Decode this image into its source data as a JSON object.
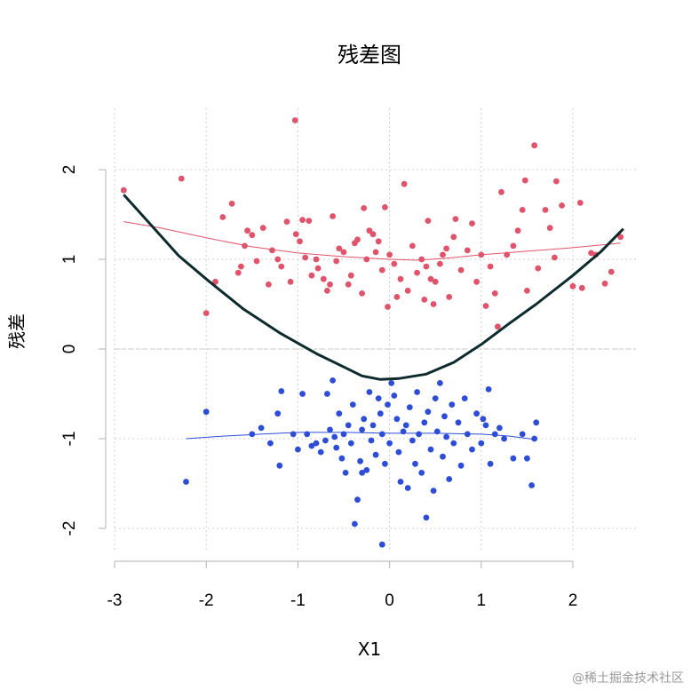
{
  "watermark": "@稀土掘金技术社区",
  "chart_data": {
    "type": "scatter",
    "title": "残差图",
    "xlabel": "X1",
    "ylabel": "残差",
    "xlim": [
      -3,
      2.7
    ],
    "ylim": [
      -2.4,
      2.6
    ],
    "x_ticks": [
      -3,
      -2,
      -1,
      0,
      1,
      2
    ],
    "y_ticks": [
      -2,
      -1,
      0,
      1,
      2
    ],
    "grid": true,
    "reference_line_y": 0,
    "colors": {
      "positive": "#df536b",
      "negative": "#2e4dd6",
      "trend": "#0d2a2c",
      "grid": "#d0d0d0"
    },
    "series": [
      {
        "color": "#df536b",
        "points": [
          [
            -2.9,
            1.77
          ],
          [
            -2.27,
            1.9
          ],
          [
            -2.0,
            0.4
          ],
          [
            -1.9,
            0.75
          ],
          [
            -1.82,
            1.47
          ],
          [
            -1.72,
            1.62
          ],
          [
            -1.65,
            0.85
          ],
          [
            -1.62,
            0.92
          ],
          [
            -1.58,
            1.15
          ],
          [
            -1.55,
            1.32
          ],
          [
            -1.5,
            1.27
          ],
          [
            -1.45,
            0.98
          ],
          [
            -1.38,
            1.35
          ],
          [
            -1.32,
            0.72
          ],
          [
            -1.28,
            1.1
          ],
          [
            -1.22,
            1.0
          ],
          [
            -1.18,
            0.92
          ],
          [
            -1.12,
            1.42
          ],
          [
            -1.08,
            0.75
          ],
          [
            -1.02,
            1.28
          ],
          [
            -0.98,
            1.2
          ],
          [
            -0.95,
            1.44
          ],
          [
            -0.92,
            1.02
          ],
          [
            -0.88,
            1.43
          ],
          [
            -0.85,
            0.82
          ],
          [
            -0.8,
            1.0
          ],
          [
            -0.78,
            0.9
          ],
          [
            -0.72,
            0.78
          ],
          [
            -0.68,
            0.65
          ],
          [
            -0.65,
            0.72
          ],
          [
            -0.62,
            1.48
          ],
          [
            -0.58,
            0.98
          ],
          [
            -0.55,
            1.12
          ],
          [
            -0.5,
            1.08
          ],
          [
            -0.45,
            0.72
          ],
          [
            -0.42,
            0.82
          ],
          [
            -0.38,
            1.18
          ],
          [
            -0.35,
            1.22
          ],
          [
            -0.3,
            0.62
          ],
          [
            -0.28,
            1.57
          ],
          [
            -0.25,
            1.0
          ],
          [
            -0.22,
            1.32
          ],
          [
            -0.18,
            1.28
          ],
          [
            -0.15,
            1.08
          ],
          [
            -0.12,
            1.2
          ],
          [
            -0.08,
            0.88
          ],
          [
            -0.05,
            1.58
          ],
          [
            -0.02,
            0.47
          ],
          [
            0.0,
            1.05
          ],
          [
            0.05,
            0.95
          ],
          [
            0.08,
            0.58
          ],
          [
            0.12,
            0.78
          ],
          [
            0.16,
            1.84
          ],
          [
            0.2,
            0.65
          ],
          [
            0.25,
            1.15
          ],
          [
            0.3,
            0.85
          ],
          [
            0.35,
            1.0
          ],
          [
            0.38,
            0.55
          ],
          [
            0.4,
            0.92
          ],
          [
            0.42,
            1.43
          ],
          [
            0.45,
            0.78
          ],
          [
            0.48,
            0.5
          ],
          [
            0.5,
            0.75
          ],
          [
            0.55,
            0.95
          ],
          [
            0.58,
            1.05
          ],
          [
            0.62,
            1.12
          ],
          [
            0.65,
            0.58
          ],
          [
            0.7,
            1.25
          ],
          [
            0.72,
            1.45
          ],
          [
            0.78,
            0.88
          ],
          [
            0.85,
            1.1
          ],
          [
            0.9,
            1.4
          ],
          [
            0.95,
            0.75
          ],
          [
            1.0,
            1.05
          ],
          [
            1.05,
            0.48
          ],
          [
            1.1,
            0.92
          ],
          [
            1.15,
            0.62
          ],
          [
            1.18,
            0.25
          ],
          [
            1.22,
            1.75
          ],
          [
            1.28,
            1.05
          ],
          [
            1.35,
            1.15
          ],
          [
            1.4,
            1.32
          ],
          [
            1.45,
            1.55
          ],
          [
            1.48,
            1.88
          ],
          [
            1.5,
            0.65
          ],
          [
            1.58,
            2.27
          ],
          [
            1.62,
            0.9
          ],
          [
            1.7,
            1.55
          ],
          [
            1.75,
            1.35
          ],
          [
            1.8,
            1.02
          ],
          [
            1.82,
            1.87
          ],
          [
            1.88,
            1.6
          ],
          [
            2.0,
            0.7
          ],
          [
            2.08,
            1.63
          ],
          [
            2.1,
            0.68
          ],
          [
            2.2,
            1.07
          ],
          [
            2.25,
            1.05
          ],
          [
            2.35,
            0.73
          ],
          [
            2.42,
            0.86
          ],
          [
            2.52,
            1.25
          ],
          [
            -1.03,
            2.55
          ]
        ],
        "fit": [
          [
            -2.9,
            1.42
          ],
          [
            -2.5,
            1.35
          ],
          [
            -2.0,
            1.24
          ],
          [
            -1.5,
            1.14
          ],
          [
            -1.0,
            1.07
          ],
          [
            -0.5,
            1.03
          ],
          [
            0.0,
            1.0
          ],
          [
            0.3,
            0.99
          ],
          [
            0.6,
            1.01
          ],
          [
            1.0,
            1.05
          ],
          [
            1.5,
            1.09
          ],
          [
            2.0,
            1.13
          ],
          [
            2.52,
            1.18
          ]
        ]
      },
      {
        "color": "#2e4dd6",
        "points": [
          [
            -2.22,
            -1.48
          ],
          [
            -2.0,
            -0.7
          ],
          [
            -1.5,
            -0.95
          ],
          [
            -1.4,
            -0.88
          ],
          [
            -1.3,
            -1.05
          ],
          [
            -1.22,
            -0.72
          ],
          [
            -1.18,
            -0.47
          ],
          [
            -1.2,
            -1.3
          ],
          [
            -1.05,
            -0.95
          ],
          [
            -1.0,
            -1.12
          ],
          [
            -0.95,
            -0.5
          ],
          [
            -0.9,
            -0.95
          ],
          [
            -0.85,
            -1.08
          ],
          [
            -0.8,
            -1.05
          ],
          [
            -0.75,
            -1.15
          ],
          [
            -0.7,
            -1.02
          ],
          [
            -0.68,
            -0.5
          ],
          [
            -0.65,
            -0.9
          ],
          [
            -0.62,
            -0.35
          ],
          [
            -0.6,
            -0.98
          ],
          [
            -0.58,
            -1.1
          ],
          [
            -0.55,
            -0.72
          ],
          [
            -0.52,
            -1.22
          ],
          [
            -0.5,
            -0.95
          ],
          [
            -0.48,
            -1.38
          ],
          [
            -0.45,
            -0.85
          ],
          [
            -0.42,
            -1.05
          ],
          [
            -0.4,
            -0.62
          ],
          [
            -0.38,
            -1.95
          ],
          [
            -0.35,
            -1.68
          ],
          [
            -0.32,
            -1.25
          ],
          [
            -0.3,
            -0.9
          ],
          [
            -0.28,
            -0.78
          ],
          [
            -0.25,
            -1.35
          ],
          [
            -0.22,
            -0.48
          ],
          [
            -0.2,
            -1.02
          ],
          [
            -0.18,
            -0.85
          ],
          [
            -0.15,
            -1.18
          ],
          [
            -0.12,
            -0.55
          ],
          [
            -0.1,
            -0.72
          ],
          [
            -0.08,
            -0.95
          ],
          [
            -0.05,
            -1.28
          ],
          [
            -0.02,
            -0.62
          ],
          [
            0.0,
            -1.05
          ],
          [
            0.02,
            -0.38
          ],
          [
            0.05,
            -0.52
          ],
          [
            0.08,
            -0.78
          ],
          [
            0.1,
            -1.15
          ],
          [
            0.12,
            -1.48
          ],
          [
            0.15,
            -0.92
          ],
          [
            0.18,
            -0.85
          ],
          [
            0.2,
            -1.55
          ],
          [
            0.22,
            -0.65
          ],
          [
            0.25,
            -1.02
          ],
          [
            0.28,
            -1.28
          ],
          [
            0.3,
            -0.48
          ],
          [
            0.32,
            -0.95
          ],
          [
            0.35,
            -1.38
          ],
          [
            0.38,
            -0.82
          ],
          [
            0.4,
            -1.88
          ],
          [
            0.42,
            -0.7
          ],
          [
            0.45,
            -1.12
          ],
          [
            0.48,
            -1.58
          ],
          [
            0.5,
            -0.55
          ],
          [
            0.52,
            -0.92
          ],
          [
            0.55,
            -0.38
          ],
          [
            0.58,
            -1.2
          ],
          [
            0.6,
            -0.75
          ],
          [
            0.62,
            -0.98
          ],
          [
            0.65,
            -1.45
          ],
          [
            0.68,
            -0.62
          ],
          [
            0.7,
            -1.05
          ],
          [
            0.75,
            -0.82
          ],
          [
            0.78,
            -1.3
          ],
          [
            0.82,
            -0.55
          ],
          [
            0.85,
            -0.95
          ],
          [
            0.9,
            -1.12
          ],
          [
            0.95,
            -0.72
          ],
          [
            1.0,
            -1.05
          ],
          [
            1.02,
            -0.78
          ],
          [
            1.05,
            -0.85
          ],
          [
            1.08,
            -0.45
          ],
          [
            1.1,
            -1.28
          ],
          [
            1.15,
            -0.95
          ],
          [
            1.2,
            -0.88
          ],
          [
            1.25,
            -1.0
          ],
          [
            1.35,
            -1.22
          ],
          [
            1.45,
            -0.95
          ],
          [
            1.5,
            -1.22
          ],
          [
            1.55,
            -1.52
          ],
          [
            1.58,
            -1.0
          ],
          [
            1.6,
            -0.82
          ],
          [
            -0.08,
            -2.18
          ],
          [
            -0.3,
            -1.38
          ]
        ],
        "fit": [
          [
            -2.22,
            -1.0
          ],
          [
            -1.8,
            -0.97
          ],
          [
            -1.4,
            -0.95
          ],
          [
            -1.0,
            -0.93
          ],
          [
            -0.5,
            -0.93
          ],
          [
            0.0,
            -0.94
          ],
          [
            0.5,
            -0.94
          ],
          [
            1.0,
            -0.95
          ],
          [
            1.3,
            -0.97
          ],
          [
            1.6,
            -1.01
          ]
        ]
      }
    ],
    "trend": [
      [
        -2.9,
        1.72
      ],
      [
        -2.6,
        1.38
      ],
      [
        -2.3,
        1.04
      ],
      [
        -2.0,
        0.78
      ],
      [
        -1.6,
        0.45
      ],
      [
        -1.2,
        0.18
      ],
      [
        -0.8,
        -0.05
      ],
      [
        -0.5,
        -0.2
      ],
      [
        -0.3,
        -0.3
      ],
      [
        -0.1,
        -0.34
      ],
      [
        0.1,
        -0.33
      ],
      [
        0.4,
        -0.28
      ],
      [
        0.7,
        -0.15
      ],
      [
        1.0,
        0.05
      ],
      [
        1.3,
        0.28
      ],
      [
        1.6,
        0.5
      ],
      [
        2.0,
        0.82
      ],
      [
        2.3,
        1.08
      ],
      [
        2.55,
        1.34
      ]
    ]
  }
}
